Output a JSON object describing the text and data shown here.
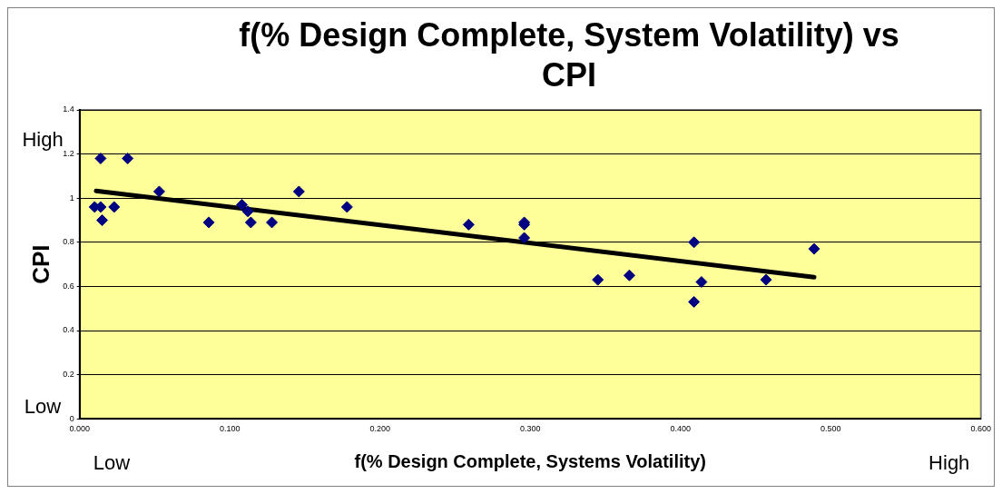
{
  "chart_data": {
    "type": "scatter",
    "title": "f(% Design Complete, System Volatility) vs CPI",
    "xlabel": "f(% Design Complete, Systems Volatility)",
    "ylabel": "CPI",
    "xlim": [
      0,
      0.6
    ],
    "xticks": [
      {
        "value": 0,
        "label": "0.000"
      },
      {
        "value": 0.1,
        "label": "0.100"
      },
      {
        "value": 0.2,
        "label": "0.200"
      },
      {
        "value": 0.3,
        "label": "0.300"
      },
      {
        "value": 0.4,
        "label": "0.400"
      },
      {
        "value": 0.5,
        "label": "0.500"
      },
      {
        "value": 0.6,
        "label": "0.600"
      }
    ],
    "ylim": [
      0,
      1.4
    ],
    "yticks": [
      0,
      0.2,
      0.4,
      0.6,
      0.8,
      1,
      1.2,
      1.4
    ],
    "grid": "y",
    "marker": "diamond",
    "annotations": [
      "High",
      "Low",
      "Low",
      "High"
    ],
    "series": [
      {
        "color": "#000080",
        "x": [
          0.01,
          0.014,
          0.014,
          0.015,
          0.023,
          0.032,
          0.053,
          0.086,
          0.108,
          0.112,
          0.114,
          0.128,
          0.146,
          0.178,
          0.259,
          0.296,
          0.296,
          0.296,
          0.345,
          0.366,
          0.409,
          0.409,
          0.414,
          0.457,
          0.489
        ],
        "values": [
          0.96,
          0.96,
          1.18,
          0.9,
          0.96,
          1.18,
          1.03,
          0.89,
          0.97,
          0.94,
          0.89,
          0.89,
          1.03,
          0.96,
          0.88,
          0.89,
          0.88,
          0.82,
          0.63,
          0.65,
          0.8,
          0.53,
          0.62,
          0.63,
          0.77
        ]
      },
      {
        "type": "line",
        "color": "#000000",
        "marker": "none",
        "x": [
          0.011,
          0.489
        ],
        "values": [
          1.033,
          0.642
        ]
      }
    ]
  }
}
